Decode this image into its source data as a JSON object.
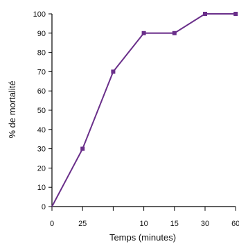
{
  "chart_data": {
    "type": "line",
    "title": "",
    "xlabel": "Temps (minutes)",
    "ylabel": "% de mortalité",
    "categories": [
      "0",
      "25",
      "",
      "10",
      "15",
      "30",
      "60"
    ],
    "series": [
      {
        "values": [
          0,
          30,
          70,
          90,
          90,
          100,
          100
        ]
      }
    ],
    "ylim": [
      0,
      100
    ],
    "yticks": [
      0,
      10,
      20,
      30,
      40,
      50,
      60,
      70,
      80,
      90,
      100
    ],
    "grid": false,
    "legend": "none",
    "colors": {
      "line": "#6a2f8a",
      "marker": "#6a2f8a",
      "axis": "#000000"
    }
  }
}
